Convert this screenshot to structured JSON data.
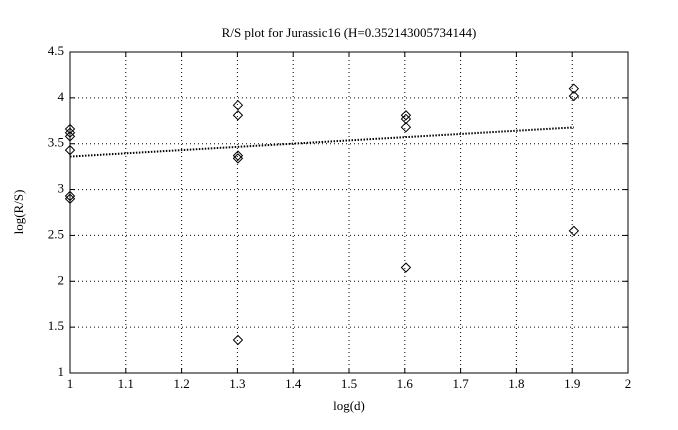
{
  "chart_data": {
    "type": "scatter",
    "title": "R/S plot for Jurassic16 (H=0.352143005734144)",
    "xlabel": "log(d)",
    "ylabel": "log(R/S)",
    "series": [
      {
        "mode": "markers",
        "marker": "diamond",
        "color": "#000000",
        "x": [
          1,
          1,
          1,
          1,
          1,
          1,
          1.301,
          1.301,
          1.301,
          1.301,
          1.301,
          1.602,
          1.602,
          1.602,
          1.602,
          1.903,
          1.903,
          1.903
        ],
        "values": [
          3.66,
          3.62,
          3.58,
          3.43,
          2.93,
          2.9,
          3.92,
          3.81,
          3.37,
          3.34,
          1.36,
          3.81,
          3.77,
          3.68,
          2.15,
          4.1,
          4.02,
          2.55
        ]
      },
      {
        "mode": "line",
        "dash": "dotted",
        "color": "#000000",
        "x": [
          1,
          1.903
        ],
        "values": [
          3.36,
          3.678
        ]
      }
    ],
    "xlim": [
      1,
      2
    ],
    "xticks": [
      1,
      1.1,
      1.2,
      1.3,
      1.4,
      1.5,
      1.6,
      1.7,
      1.8,
      1.9,
      2
    ],
    "ylim": [
      1,
      4.5
    ],
    "yticks": [
      1,
      1.5,
      2,
      2.5,
      3,
      3.5,
      4,
      4.5
    ],
    "grid": true
  }
}
